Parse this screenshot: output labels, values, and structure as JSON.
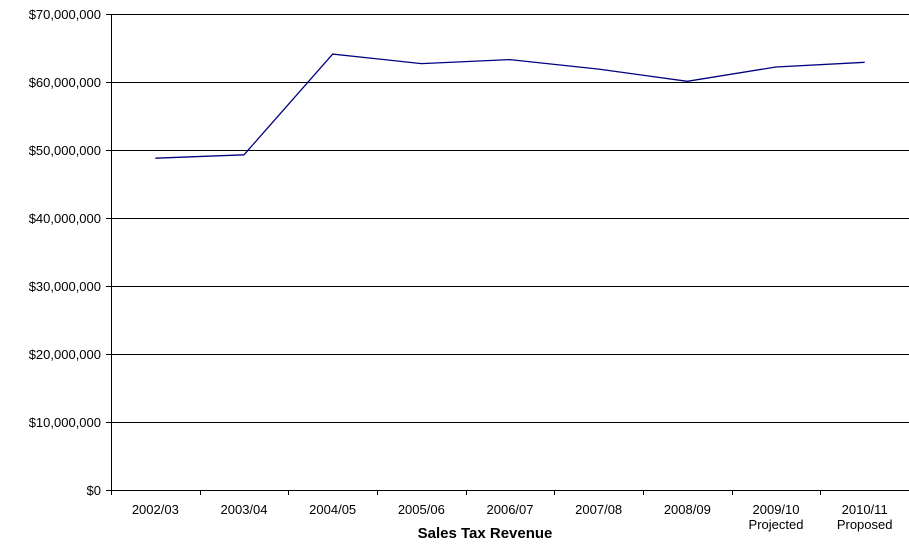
{
  "chart_data": {
    "type": "line",
    "title": "",
    "xlabel": "Sales Tax Revenue",
    "ylabel": "",
    "categories": [
      [
        "2002/03"
      ],
      [
        "2003/04"
      ],
      [
        "2004/05"
      ],
      [
        "2005/06"
      ],
      [
        "2006/07"
      ],
      [
        "2007/08"
      ],
      [
        "2008/09"
      ],
      [
        "2009/10",
        "Projected"
      ],
      [
        "2010/11",
        "Proposed"
      ]
    ],
    "series": [
      {
        "values": [
          48800000,
          49300000,
          64100000,
          62700000,
          63300000,
          61900000,
          60100000,
          62200000,
          62900000
        ],
        "color": "#000080"
      }
    ],
    "ylim": [
      0,
      70000000
    ],
    "yticks": [
      0,
      10000000,
      20000000,
      30000000,
      40000000,
      50000000,
      60000000,
      70000000
    ],
    "ytick_labels": [
      "$0",
      "$10,000,000",
      "$20,000,000",
      "$30,000,000",
      "$40,000,000",
      "$50,000,000",
      "$60,000,000",
      "$70,000,000"
    ],
    "grid": true,
    "legend": "none"
  }
}
